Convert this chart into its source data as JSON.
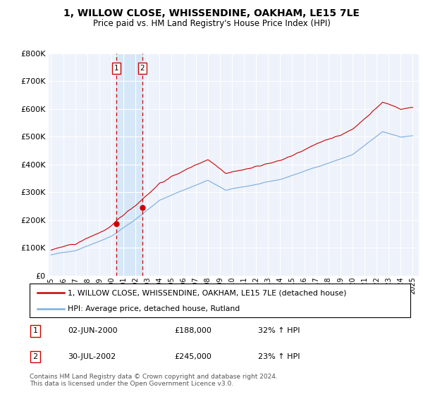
{
  "title": "1, WILLOW CLOSE, WHISSENDINE, OAKHAM, LE15 7LE",
  "subtitle": "Price paid vs. HM Land Registry's House Price Index (HPI)",
  "legend_line1": "1, WILLOW CLOSE, WHISSENDINE, OAKHAM, LE15 7LE (detached house)",
  "legend_line2": "HPI: Average price, detached house, Rutland",
  "sale1_date": "02-JUN-2000",
  "sale1_price": 188000,
  "sale1_pct": "32% ↑ HPI",
  "sale1_year": 2000.42,
  "sale2_date": "30-JUL-2002",
  "sale2_price": 245000,
  "sale2_pct": "23% ↑ HPI",
  "sale2_year": 2002.58,
  "ylim": [
    0,
    800000
  ],
  "yticks": [
    0,
    100000,
    200000,
    300000,
    400000,
    500000,
    600000,
    700000,
    800000
  ],
  "xlim_left": 1994.8,
  "xlim_right": 2025.5,
  "xticks": [
    1995,
    1996,
    1997,
    1998,
    1999,
    2000,
    2001,
    2002,
    2003,
    2004,
    2005,
    2006,
    2007,
    2008,
    2009,
    2010,
    2011,
    2012,
    2013,
    2014,
    2015,
    2016,
    2017,
    2018,
    2019,
    2020,
    2021,
    2022,
    2023,
    2024,
    2025
  ],
  "red_color": "#cc0000",
  "blue_color": "#7aace0",
  "bg_color": "#eef2fb",
  "shade_color": "#d6e8f7",
  "grid_color": "#ffffff",
  "footnote": "Contains HM Land Registry data © Crown copyright and database right 2024.\nThis data is licensed under the Open Government Licence v3.0."
}
